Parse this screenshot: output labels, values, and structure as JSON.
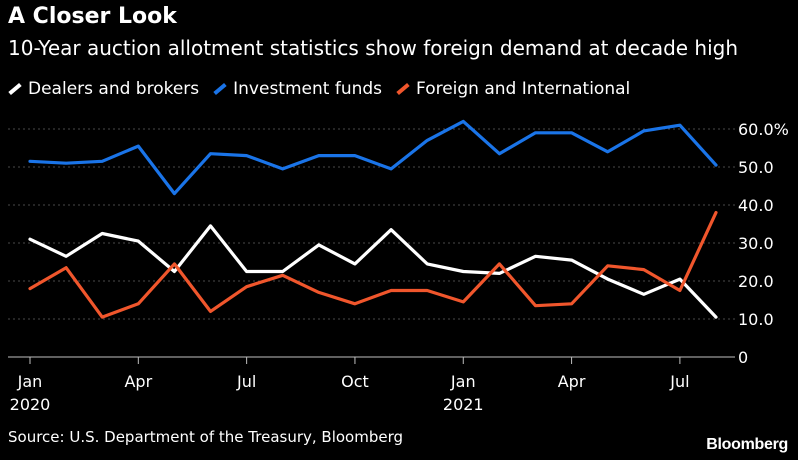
{
  "header": {
    "title": "A Closer Look",
    "subtitle": "10-Year auction allotment statistics show foreign demand at decade high"
  },
  "footer": {
    "source": "Source: U.S. Department of the Treasury, Bloomberg",
    "brand": "Bloomberg"
  },
  "chart_data": {
    "type": "line",
    "x": [
      "2020-01",
      "2020-02",
      "2020-03",
      "2020-04",
      "2020-05",
      "2020-06",
      "2020-07",
      "2020-08",
      "2020-09",
      "2020-10",
      "2020-11",
      "2020-12",
      "2021-01",
      "2021-02",
      "2021-03",
      "2021-04",
      "2021-05",
      "2021-06",
      "2021-07",
      "2021-08"
    ],
    "series": [
      {
        "name": "Dealers and brokers",
        "color": "#ffffff",
        "values": [
          31,
          26.5,
          32.5,
          30.5,
          22.5,
          34.5,
          22.5,
          22.5,
          29.5,
          24.5,
          33.5,
          24.5,
          22.5,
          22,
          26.5,
          25.5,
          20.5,
          16.5,
          20.5,
          10.5
        ]
      },
      {
        "name": "Investment funds",
        "color": "#1a74e8",
        "values": [
          51.5,
          51,
          51.5,
          55.5,
          43,
          53.5,
          53,
          49.5,
          53,
          53,
          49.5,
          57,
          62,
          53.5,
          59,
          59,
          54,
          59.5,
          61,
          50.5
        ]
      },
      {
        "name": "Foreign and International",
        "color": "#f0562c",
        "values": [
          18,
          23.5,
          10.5,
          14,
          24.5,
          12,
          18.5,
          21.5,
          17,
          14,
          17.5,
          17.5,
          14.5,
          24.5,
          13.5,
          14,
          24,
          23,
          17.5,
          38
        ]
      }
    ],
    "ylim": [
      0,
      60
    ],
    "yticks": [
      {
        "value": 0,
        "label": "0"
      },
      {
        "value": 10,
        "label": "10.0"
      },
      {
        "value": 20,
        "label": "20.0"
      },
      {
        "value": 30,
        "label": "30.0"
      },
      {
        "value": 40,
        "label": "40.0"
      },
      {
        "value": 50,
        "label": "50.0"
      },
      {
        "value": 60,
        "label": "60.0%"
      }
    ],
    "xticks": [
      {
        "month": "2020-01",
        "label": "Jan",
        "year": "2020"
      },
      {
        "month": "2020-04",
        "label": "Apr",
        "year": ""
      },
      {
        "month": "2020-07",
        "label": "Jul",
        "year": ""
      },
      {
        "month": "2020-10",
        "label": "Oct",
        "year": ""
      },
      {
        "month": "2021-01",
        "label": "Jan",
        "year": "2021"
      },
      {
        "month": "2021-04",
        "label": "Apr",
        "year": ""
      },
      {
        "month": "2021-07",
        "label": "Jul",
        "year": ""
      }
    ],
    "grid": true,
    "legend_position": "top-left"
  }
}
